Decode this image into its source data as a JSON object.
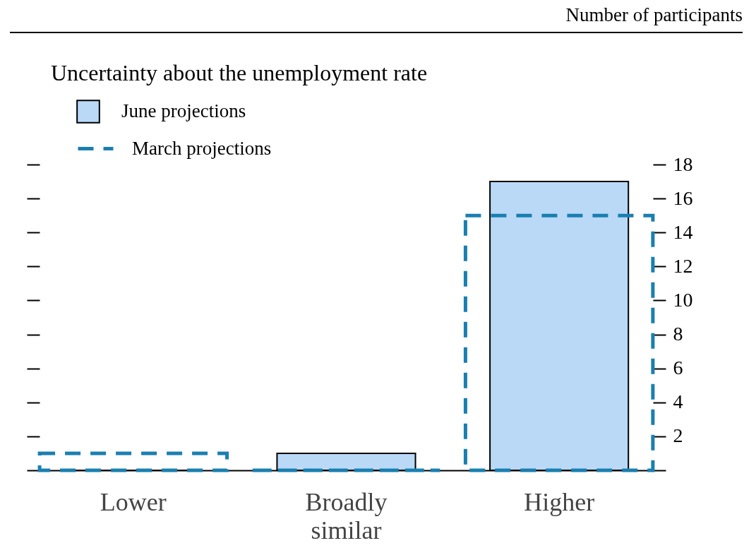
{
  "chart_data": {
    "type": "bar",
    "title": "Uncertainty about the unemployment rate",
    "annotations": [
      "Number of participants"
    ],
    "categories": [
      "Lower",
      "Broadly similar",
      "Higher"
    ],
    "series": [
      {
        "name": "June projections",
        "color": "#b9d9f7",
        "values": [
          0,
          1,
          17
        ]
      },
      {
        "name": "March projections",
        "color": "#1a7fb0",
        "values": [
          1,
          0,
          15
        ],
        "line_style": "dashed"
      }
    ],
    "ylim": [
      0,
      18
    ],
    "yticks": [
      2,
      4,
      6,
      8,
      10,
      12,
      14,
      16,
      18
    ],
    "grid": false,
    "legend": "top left"
  }
}
